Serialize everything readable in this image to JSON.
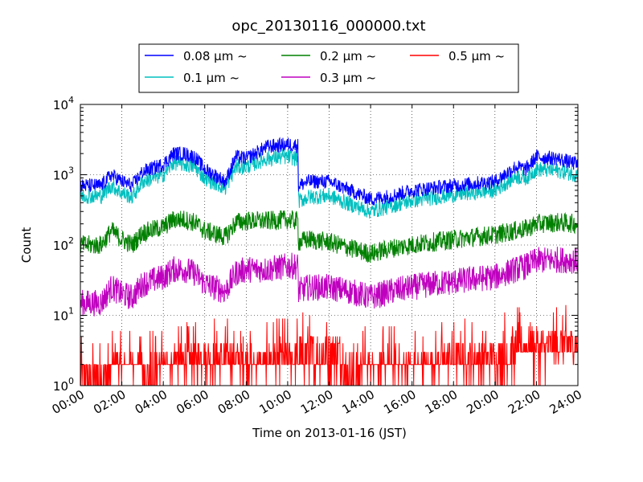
{
  "chart_data": {
    "type": "line",
    "title": "opc_20130116_000000.txt",
    "xlabel": "Time on 2013-01-16 (JST)",
    "ylabel": "Count",
    "xlim": [
      "00:00",
      "24:00"
    ],
    "ylim": [
      1,
      10000
    ],
    "yscale": "log",
    "grid": true,
    "legend_placement": "top-center",
    "x_ticks": [
      "00:00",
      "02:00",
      "04:00",
      "06:00",
      "08:00",
      "10:00",
      "12:00",
      "14:00",
      "16:00",
      "18:00",
      "20:00",
      "22:00",
      "24:00"
    ],
    "y_ticks": [
      {
        "base": "10",
        "exp": "0",
        "value": 1
      },
      {
        "base": "10",
        "exp": "1",
        "value": 10
      },
      {
        "base": "10",
        "exp": "2",
        "value": 100
      },
      {
        "base": "10",
        "exp": "3",
        "value": 1000
      },
      {
        "base": "10",
        "exp": "4",
        "value": 10000
      }
    ],
    "x": [
      "00:00",
      "01:00",
      "01:30",
      "02:00",
      "02:30",
      "03:00",
      "04:00",
      "04:30",
      "05:00",
      "05:30",
      "06:00",
      "07:00",
      "07:30",
      "08:00",
      "09:00",
      "10:00",
      "10:30",
      "10:31",
      "11:00",
      "12:00",
      "13:00",
      "14:00",
      "15:00",
      "16:00",
      "17:00",
      "18:00",
      "19:00",
      "20:00",
      "21:00",
      "21:30",
      "22:00",
      "23:00",
      "24:00"
    ],
    "series": [
      {
        "name": "0.08 μm ~",
        "color": "#0000ff",
        "noise": 0.12,
        "values": [
          700,
          700,
          1000,
          800,
          700,
          1100,
          1400,
          2000,
          2000,
          1800,
          1200,
          800,
          1800,
          1700,
          2500,
          2700,
          2600,
          700,
          800,
          800,
          600,
          450,
          500,
          600,
          650,
          700,
          750,
          800,
          1300,
          1200,
          1800,
          1700,
          1400
        ]
      },
      {
        "name": "0.1 μm ~",
        "color": "#00bfbf",
        "noise": 0.13,
        "values": [
          500,
          500,
          700,
          550,
          480,
          800,
          1000,
          1500,
          1400,
          1300,
          900,
          650,
          1300,
          1300,
          1700,
          1800,
          1700,
          420,
          480,
          500,
          380,
          300,
          360,
          430,
          470,
          520,
          560,
          600,
          950,
          900,
          1200,
          1150,
          1000
        ]
      },
      {
        "name": "0.2 μm ~",
        "color": "#008000",
        "noise": 0.16,
        "values": [
          100,
          100,
          160,
          120,
          100,
          150,
          180,
          230,
          230,
          210,
          160,
          130,
          210,
          220,
          220,
          230,
          220,
          110,
          120,
          110,
          90,
          75,
          90,
          100,
          110,
          120,
          130,
          140,
          160,
          170,
          200,
          210,
          200
        ]
      },
      {
        "name": "0.3 μm ~",
        "color": "#bf00bf",
        "noise": 0.22,
        "values": [
          15,
          15,
          25,
          20,
          18,
          28,
          35,
          45,
          45,
          40,
          28,
          22,
          40,
          45,
          45,
          50,
          50,
          22,
          25,
          25,
          22,
          18,
          22,
          25,
          28,
          30,
          33,
          35,
          45,
          50,
          60,
          62,
          60
        ]
      },
      {
        "name": "0.5 μm ~",
        "color": "#ff0000",
        "noise": 0,
        "values": [
          1.5,
          1.5,
          2,
          2,
          1.7,
          2,
          2.2,
          2.5,
          2.5,
          2.5,
          2.3,
          2,
          2.5,
          2.8,
          3,
          3,
          3,
          1.8,
          2,
          2,
          2,
          2,
          2,
          2.2,
          2.4,
          2.6,
          2.8,
          3,
          3.5,
          3.5,
          4,
          4,
          4
        ]
      }
    ]
  }
}
